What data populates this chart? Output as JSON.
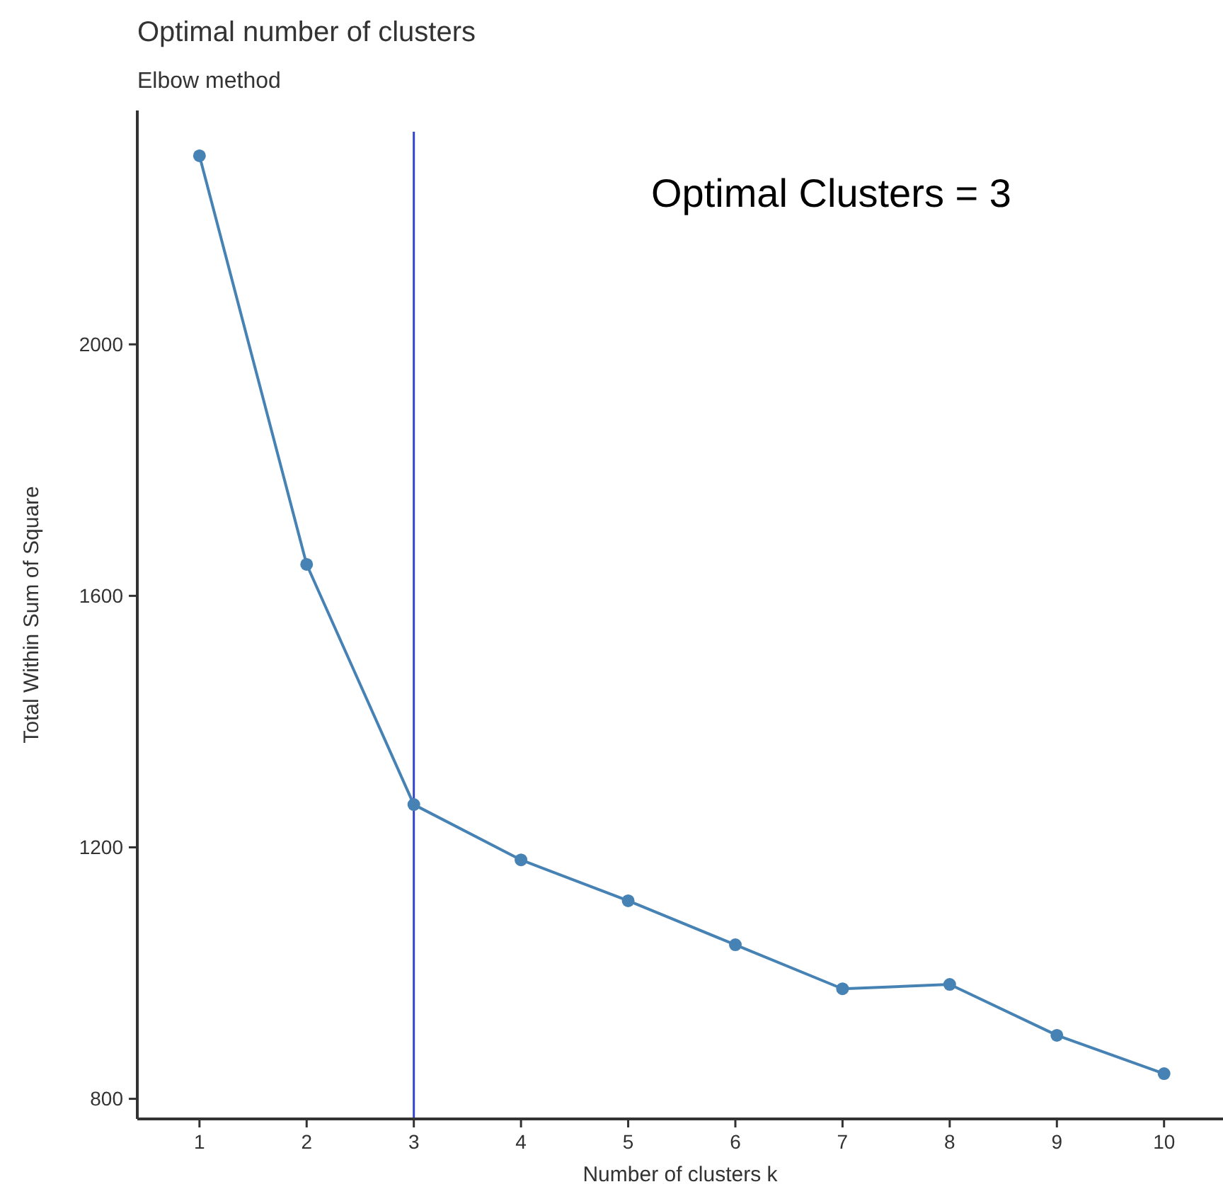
{
  "chart_data": {
    "type": "line",
    "title": "Optimal number of clusters",
    "subtitle": "Elbow method",
    "xlabel": "Number of clusters k",
    "ylabel": "Total Within Sum of Square",
    "x": [
      1,
      2,
      3,
      4,
      5,
      6,
      7,
      8,
      9,
      10
    ],
    "series": [
      {
        "color": "#4682b4",
        "values": [
          2300,
          1650,
          1268,
          1180,
          1115,
          1045,
          975,
          982,
          901,
          840
        ]
      }
    ],
    "xlim": [
      0.42,
      10.55
    ],
    "xticks": [
      1,
      2,
      3,
      4,
      5,
      6,
      7,
      8,
      9,
      10
    ],
    "ylim": [
      768,
      2372
    ],
    "yticks": [
      800,
      1200,
      1600,
      2000
    ],
    "ref_lines": [
      {
        "axis": "x",
        "value": 3,
        "color": "#3344cc"
      }
    ],
    "annotations": [
      "Optimal Clusters = 3"
    ],
    "grid": false,
    "marker": "circle",
    "line_style": "solid"
  }
}
